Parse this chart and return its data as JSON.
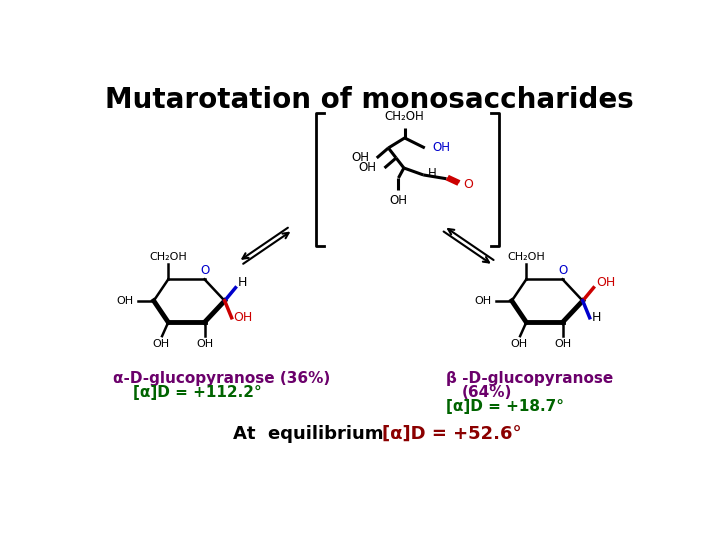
{
  "title": "Mutarotation of monosaccharides",
  "title_fontsize": 20,
  "title_weight": "bold",
  "bg_color": "#ffffff",
  "left_label_line1": "α-D-glucopyranose (36%)",
  "left_label_line2": "[α]D = +112.2°",
  "right_label_line1": "β -D-glucopyranose",
  "right_label_line2": "(64%)",
  "right_label_line3": "[α]D = +18.7°",
  "bottom_label_black": "At  equilibrium ",
  "bottom_label_red": "[α]D = +52.6°",
  "purple_color": "#6B006B",
  "green_color": "#006400",
  "dark_red_color": "#8B0000",
  "red_color": "#CC0000",
  "blue_color": "#0000CC",
  "black_color": "#000000"
}
